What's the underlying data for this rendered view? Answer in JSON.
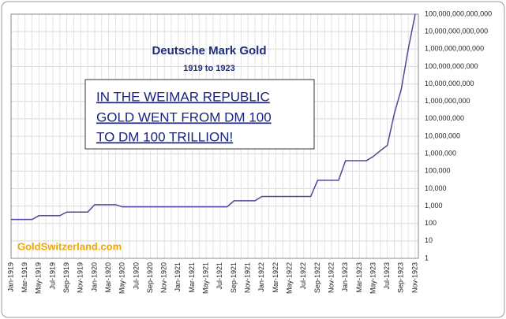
{
  "chart_data": {
    "type": "line",
    "title": "Deutsche Mark Gold",
    "subtitle": "1919 to 1923",
    "annotation": [
      "IN THE WEIMAR REPUBLIC",
      "GOLD WENT FROM DM 100",
      "TO DM 100 TRILLION!"
    ],
    "watermark": "GoldSwitzerland.com",
    "categories": [
      "Jan-1919",
      null,
      "Mar-1919",
      null,
      "May-1919",
      null,
      "Jul-1919",
      null,
      "Sep-1919",
      null,
      "Nov-1919",
      null,
      "Jan-1920",
      null,
      "Mar-1920",
      null,
      "May-1920",
      null,
      "Jul-1920",
      null,
      "Sep-1920",
      null,
      "Nov-1920",
      null,
      "Jan-1921",
      null,
      "Mar-1921",
      null,
      "May-1921",
      null,
      "Jul-1921",
      null,
      "Sep-1921",
      null,
      "Nov-1921",
      null,
      "Jan-1922",
      null,
      "Mar-1922",
      null,
      "May-1922",
      null,
      "Jul-1922",
      null,
      "Sep-1922",
      null,
      "Nov-1922",
      null,
      "Jan-1923",
      null,
      "Mar-1923",
      null,
      "May-1923",
      null,
      "Jul-1923",
      null,
      "Sep-1923",
      null,
      "Nov-1923"
    ],
    "values": [
      170,
      170,
      170,
      170,
      280,
      280,
      280,
      280,
      450,
      450,
      450,
      450,
      1200,
      1200,
      1200,
      1200,
      900,
      900,
      900,
      900,
      900,
      900,
      900,
      900,
      900,
      900,
      900,
      900,
      900,
      900,
      900,
      900,
      2000,
      2000,
      2000,
      2000,
      3500,
      3500,
      3500,
      3500,
      3500,
      3500,
      3500,
      3500,
      30000,
      30000,
      30000,
      30000,
      400000,
      400000,
      400000,
      400000,
      700000,
      1500000,
      3000000,
      200000000,
      5000000000,
      1000000000000,
      100000000000000
    ],
    "color": "#4a4a9c",
    "log_scale": true,
    "grid": true,
    "ylim": [
      1,
      100000000000000
    ],
    "yticks": [
      {
        "value": 1,
        "label": "1"
      },
      {
        "value": 10,
        "label": "10"
      },
      {
        "value": 100,
        "label": "100"
      },
      {
        "value": 1000,
        "label": "1,000"
      },
      {
        "value": 10000,
        "label": "10,000"
      },
      {
        "value": 100000,
        "label": "100,000"
      },
      {
        "value": 1000000,
        "label": "1,000,000"
      },
      {
        "value": 10000000,
        "label": "10,000,000"
      },
      {
        "value": 100000000,
        "label": "100,000,000"
      },
      {
        "value": 1000000000,
        "label": "1,000,000,000"
      },
      {
        "value": 10000000000,
        "label": "10,000,000,000"
      },
      {
        "value": 100000000000,
        "label": "100,000,000,000"
      },
      {
        "value": 1000000000000,
        "label": "1,000,000,000,000"
      },
      {
        "value": 10000000000000,
        "label": "10,000,000,000,000"
      },
      {
        "value": 100000000000000,
        "label": "100,000,000,000,000"
      }
    ]
  }
}
